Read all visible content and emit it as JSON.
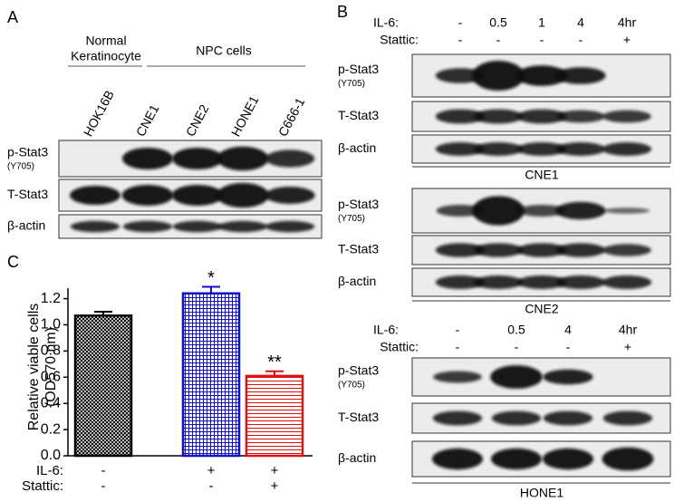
{
  "panel_labels": [
    "A",
    "B",
    "C"
  ],
  "panel_a": {
    "groups": [
      {
        "label": [
          "Normal",
          "Keratinocyte"
        ]
      },
      {
        "label": [
          "NPC cells"
        ]
      }
    ],
    "lanes": [
      "HOK16B",
      "CNE1",
      "CNE2",
      "HONE1",
      "C666-1"
    ],
    "rows": [
      {
        "label": "p-Stat3",
        "sublabel": "(Y705)"
      },
      {
        "label": "T-Stat3"
      },
      {
        "label": "β-actin"
      }
    ]
  },
  "panel_b": {
    "blocks": [
      {
        "treatments": [
          {
            "name": "IL-6:",
            "values": [
              "-",
              "0.5",
              "1",
              "4",
              "4hr"
            ]
          },
          {
            "name": "Stattic:",
            "values": [
              "-",
              "-",
              "-",
              "-",
              "+"
            ]
          }
        ],
        "rows": [
          {
            "label": "p-Stat3",
            "sublabel": "(Y705)"
          },
          {
            "label": "T-Stat3"
          },
          {
            "label": "β-actin"
          }
        ],
        "cell_line": "CNE1"
      },
      {
        "rows": [
          {
            "label": "p-Stat3",
            "sublabel": "(Y705)"
          },
          {
            "label": "T-Stat3"
          },
          {
            "label": "β-actin"
          }
        ],
        "cell_line": "CNE2"
      },
      {
        "treatments": [
          {
            "name": "IL-6:",
            "values": [
              "-",
              "0.5",
              "4",
              "4hr"
            ]
          },
          {
            "name": "Stattic:",
            "values": [
              "-",
              "-",
              "-",
              "+"
            ]
          }
        ],
        "rows": [
          {
            "label": "p-Stat3",
            "sublabel": "(Y705)"
          },
          {
            "label": "T-Stat3"
          },
          {
            "label": "β-actin"
          }
        ],
        "cell_line": "HONE1"
      }
    ]
  },
  "chart_data": {
    "type": "bar",
    "ylabel": [
      "Relative viable cells",
      "(OD570 nm)"
    ],
    "values": [
      1.07,
      1.24,
      0.61
    ],
    "errors": [
      0.03,
      0.05,
      0.035
    ],
    "colors": [
      "#000000",
      "#1010c8",
      "#e01010"
    ],
    "annotations": [
      null,
      "*",
      "**"
    ],
    "conditions": [
      {
        "name": "IL-6:",
        "values": [
          "-",
          "+",
          "+"
        ]
      },
      {
        "name": "Stattic:",
        "values": [
          "-",
          "-",
          "+"
        ]
      }
    ],
    "ylim": [
      0,
      1.28
    ],
    "yticks": [
      {
        "value": 0,
        "label": "0.0"
      },
      0.2,
      0.4,
      0.6,
      0.8,
      {
        "value": 1,
        "label": "1.0"
      },
      1.2
    ]
  }
}
